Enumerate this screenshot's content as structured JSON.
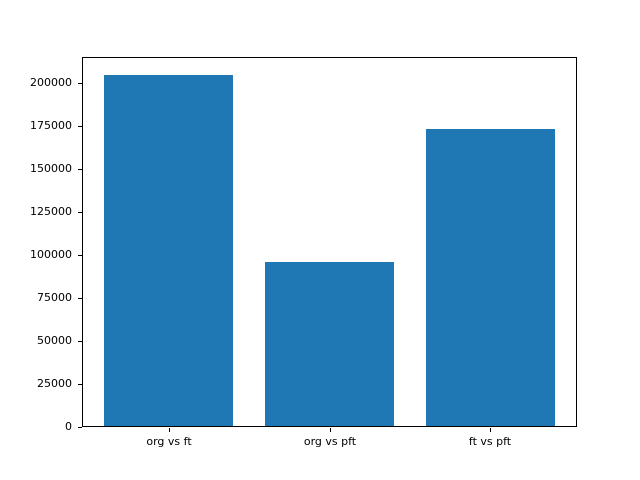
{
  "chart_data": {
    "type": "bar",
    "categories": [
      "org vs ft",
      "org vs pft",
      "ft vs pft"
    ],
    "values": [
      204500,
      96000,
      173000
    ],
    "title": "",
    "xlabel": "",
    "ylabel": "",
    "ylim": [
      0,
      215000
    ],
    "yticks": [
      0,
      25000,
      50000,
      75000,
      100000,
      125000,
      150000,
      175000,
      200000
    ],
    "legend": null,
    "grid": false,
    "bar_color": "#1f77b4",
    "axis_color": "#000000",
    "background_color": "#ffffff"
  }
}
